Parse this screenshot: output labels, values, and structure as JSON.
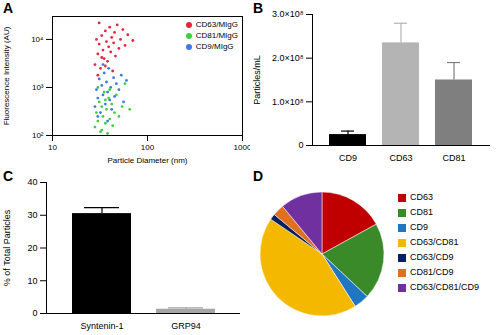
{
  "chart_data": [
    {
      "type": "scatter",
      "title": "A",
      "xlabel": "Particle Diameter (nm)",
      "ylabel": "Fluorescence Intensity (AU)",
      "log": true,
      "legend": "top-right",
      "marker": "circle",
      "xlim": [
        10,
        1000
      ],
      "xticks": [
        10,
        100,
        1000
      ],
      "ylim": [
        100,
        30000
      ],
      "yticks": [
        {
          "value": 100,
          "label": "10²"
        },
        {
          "value": 1000,
          "label": "10³"
        },
        {
          "value": 10000,
          "label": "10⁴"
        }
      ],
      "series": [
        {
          "name": "CD63/MIgG",
          "color": "#e8243c",
          "x": [
            28,
            30,
            31,
            32,
            33,
            34,
            35,
            36,
            37,
            38,
            39,
            40,
            41,
            42,
            43,
            44,
            45,
            46,
            48,
            50,
            52,
            55,
            58,
            62,
            70,
            30,
            33,
            36,
            29,
            31
          ],
          "values": [
            3000,
            5000,
            8000,
            2500,
            12000,
            6000,
            4000,
            15000,
            9000,
            3500,
            7000,
            18000,
            5500,
            11000,
            2200,
            8500,
            14000,
            4500,
            20000,
            6500,
            10000,
            16000,
            7500,
            12500,
            9500,
            1800,
            4200,
            2800,
            10000,
            22000
          ]
        },
        {
          "name": "CD81/MIgG",
          "color": "#3cd23c",
          "x": [
            28,
            29,
            30,
            31,
            32,
            33,
            34,
            35,
            36,
            37,
            38,
            39,
            40,
            42,
            43,
            45,
            47,
            50,
            54,
            58,
            30,
            33,
            36,
            40,
            65
          ],
          "values": [
            150,
            300,
            200,
            500,
            120,
            400,
            250,
            800,
            180,
            350,
            110,
            600,
            220,
            450,
            160,
            300,
            700,
            250,
            400,
            1200,
            1000,
            130,
            550,
            900,
            350
          ]
        },
        {
          "name": "CD9/MIgG",
          "color": "#3c78e6",
          "x": [
            28,
            29,
            30,
            31,
            32,
            33,
            34,
            35,
            36,
            37,
            38,
            39,
            40,
            41,
            42,
            44,
            45,
            47,
            50,
            53,
            56,
            60,
            30,
            34,
            38
          ],
          "values": [
            400,
            900,
            600,
            1500,
            300,
            1100,
            700,
            2000,
            450,
            1300,
            800,
            2500,
            550,
            1000,
            350,
            1600,
            650,
            1200,
            900,
            1800,
            500,
            1400,
            250,
            3000,
            200
          ]
        }
      ]
    },
    {
      "type": "bar",
      "title": "B",
      "ylabel": "Particles/mL",
      "categories": [
        "CD9",
        "CD63",
        "CD81"
      ],
      "values": [
        25000000,
        235000000,
        150000000
      ],
      "errors": [
        8000000,
        45000000,
        40000000
      ],
      "colors": [
        "#000000",
        "#b4b4b4",
        "#7f7f7f"
      ],
      "ylim": [
        0,
        300000000
      ],
      "yticks": [
        0,
        {
          "value": 100000000,
          "label": "1.0×10⁸"
        },
        {
          "value": 200000000,
          "label": "2.0×10⁸"
        },
        {
          "value": 300000000,
          "label": "3.0×10⁸"
        }
      ]
    },
    {
      "type": "bar",
      "title": "C",
      "ylabel": "% of Total Particles",
      "categories": [
        "Syntenin-1",
        "GRP94"
      ],
      "values": [
        30.5,
        1.3
      ],
      "errors": [
        1.8,
        0.4
      ],
      "colors": [
        "#000000",
        "#a6a6a6"
      ],
      "ylim": [
        0,
        40
      ],
      "yticks": [
        0,
        10,
        20,
        30,
        40
      ]
    },
    {
      "type": "pie",
      "title": "D",
      "legend": "right",
      "categories": [
        "CD63",
        "CD81",
        "CD9",
        "CD63/CD81",
        "CD63/CD9",
        "CD81/CD9",
        "CD63/CD81/CD9"
      ],
      "values": [
        17,
        20,
        4,
        43.5,
        1.5,
        3,
        11
      ],
      "colors": [
        "#c00000",
        "#3a8a2a",
        "#1f77c4",
        "#f5b800",
        "#002060",
        "#e07020",
        "#7030a0"
      ]
    }
  ]
}
